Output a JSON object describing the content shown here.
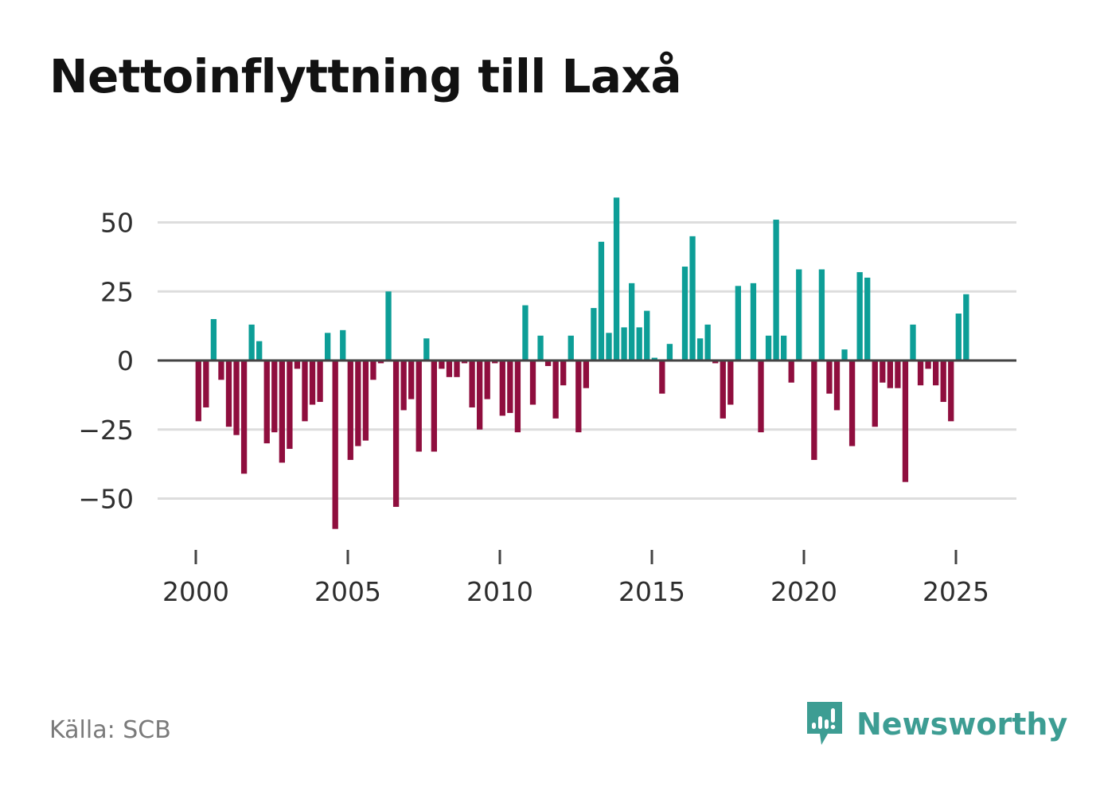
{
  "header": {
    "title": "Nettoinflyttning till Laxå"
  },
  "footer": {
    "source": "Källa: SCB",
    "brand": "Newsworthy"
  },
  "colors": {
    "positive": "#0d9e97",
    "negative": "#8f0e3e",
    "grid": "#dddddd",
    "zero_line": "#444444",
    "brand": "#3d9d93"
  },
  "chart_data": {
    "type": "bar",
    "title": "Nettoinflyttning till Laxå",
    "xlabel": "",
    "ylabel": "",
    "frequency": "quarterly",
    "start": "2000-Q1",
    "ylim": [
      -65,
      65
    ],
    "xlim": [
      1999,
      2027
    ],
    "yticks": [
      50,
      25,
      0,
      -25,
      -50
    ],
    "ytick_labels": [
      "50",
      "25",
      "0",
      "−25",
      "−50"
    ],
    "xticks": [
      2000,
      2005,
      2010,
      2015,
      2020,
      2025
    ],
    "xtick_labels": [
      "2000",
      "2005",
      "2010",
      "2015",
      "2020",
      "2025"
    ],
    "values": [
      -22,
      -17,
      15,
      -7,
      -24,
      -27,
      -41,
      13,
      7,
      -30,
      -26,
      -37,
      -32,
      -3,
      -22,
      -16,
      -15,
      10,
      -61,
      11,
      -36,
      -31,
      -29,
      -7,
      -1,
      25,
      -53,
      -18,
      -14,
      -33,
      8,
      -33,
      -3,
      -6,
      -6,
      -1,
      -17,
      -25,
      -14,
      -1,
      -20,
      -19,
      -26,
      20,
      -16,
      9,
      -2,
      -21,
      -9,
      9,
      -26,
      -10,
      19,
      43,
      10,
      59,
      12,
      28,
      12,
      18,
      1,
      -12,
      6,
      0,
      34,
      45,
      8,
      13,
      -1,
      -21,
      -16,
      27,
      0,
      28,
      -26,
      9,
      51,
      9,
      -8,
      33,
      0,
      -36,
      33,
      -12,
      -18,
      4,
      -31,
      32,
      30,
      -24,
      -8,
      -10,
      -10,
      -44,
      13,
      -9,
      -3,
      -9,
      -15,
      -22,
      17,
      24
    ]
  }
}
